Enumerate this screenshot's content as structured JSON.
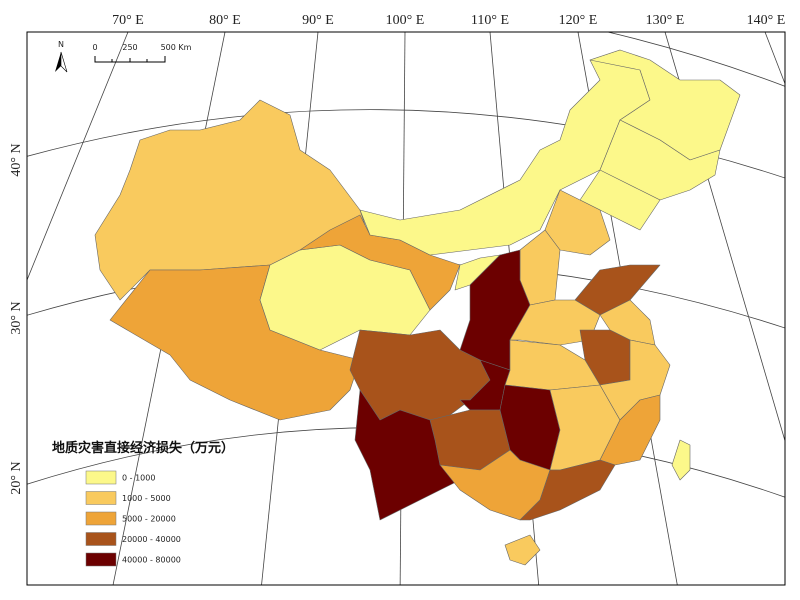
{
  "map": {
    "lon_labels": [
      "70° E",
      "80° E",
      "90° E",
      "100° E",
      "110° E",
      "120° E",
      "130° E",
      "140° E"
    ],
    "lat_labels": [
      "40° N",
      "30° N",
      "20° N"
    ],
    "north_arrow": "N",
    "scale_bar": [
      "0",
      "250",
      "500 Km"
    ],
    "legend": {
      "title": "地质灾害直接经济损失（万元）",
      "classes": [
        {
          "label": "0 - 1000",
          "color": "#fcf88a"
        },
        {
          "label": "1000 - 5000",
          "color": "#f9ca5e"
        },
        {
          "label": "5000 - 20000",
          "color": "#eea438"
        },
        {
          "label": "20000 - 40000",
          "color": "#a8531b"
        },
        {
          "label": "40000 - 80000",
          "color": "#6c0000"
        }
      ]
    }
  }
}
